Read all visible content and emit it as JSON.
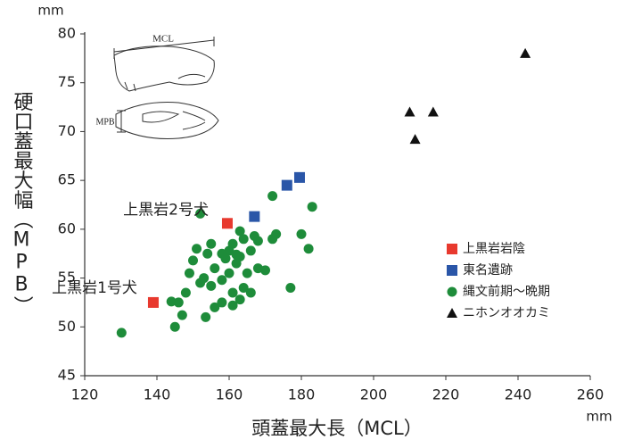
{
  "chart_data": {
    "type": "scatter",
    "x_label": "頭蓋最大長（MCL）",
    "y_label": "硬口蓋最大幅（MPB）",
    "x_unit": "mm",
    "y_unit": "mm",
    "xlim": [
      120,
      260
    ],
    "xticks": [
      120,
      140,
      160,
      180,
      200,
      220,
      240,
      260
    ],
    "ylim": [
      45,
      80
    ],
    "yticks": [
      45,
      50,
      55,
      60,
      65,
      70,
      75,
      80
    ],
    "annotations": [
      {
        "text": "上黒岩2号犬",
        "x": 159.5,
        "y": 60.6
      },
      {
        "text": "上黒岩1号犬",
        "x": 139,
        "y": 52.5
      }
    ],
    "diagram_labels": [
      "MCL",
      "MPB"
    ],
    "series": [
      {
        "name": "上黒岩岩陰",
        "color": "#e8392e",
        "marker": "square",
        "x": [
          139,
          159.5
        ],
        "values": [
          52.5,
          60.6
        ]
      },
      {
        "name": "東名遺跡",
        "color": "#2a56a8",
        "marker": "square",
        "x": [
          167,
          176,
          179.5
        ],
        "values": [
          61.3,
          64.5,
          65.3
        ]
      },
      {
        "name": "縄文前期〜晩期",
        "color": "#1e8c3a",
        "marker": "circle",
        "x": [
          130.2,
          145,
          147,
          153.5,
          156,
          158,
          161,
          163,
          146,
          144,
          148,
          152,
          155,
          158,
          161,
          164,
          166,
          149,
          153,
          156,
          160,
          162,
          165,
          168,
          150,
          154,
          158,
          160,
          163,
          166,
          170,
          151,
          155,
          161,
          164,
          167,
          163,
          172,
          173,
          180,
          182,
          183,
          172,
          159,
          152,
          177,
          168,
          162
        ],
        "values": [
          49.4,
          50,
          51.2,
          51,
          52,
          52.5,
          52.2,
          52.8,
          52.5,
          52.6,
          53.5,
          54.5,
          54.2,
          54.8,
          53.5,
          54,
          53.5,
          55.5,
          55,
          56,
          55.5,
          56.5,
          55.5,
          56,
          56.8,
          57.5,
          57.5,
          57.8,
          57.2,
          57.8,
          55.8,
          58,
          58.5,
          58.5,
          59,
          59.3,
          59.8,
          59,
          59.5,
          59.5,
          58,
          62.3,
          63.4,
          57,
          61.6,
          54,
          58.8,
          57.4
        ]
      },
      {
        "name": "ニホンオオカミ",
        "color": "#111111",
        "marker": "triangle",
        "x": [
          242,
          210,
          216.5,
          211.5
        ],
        "values": [
          78,
          72,
          72,
          69.2
        ]
      }
    ]
  }
}
